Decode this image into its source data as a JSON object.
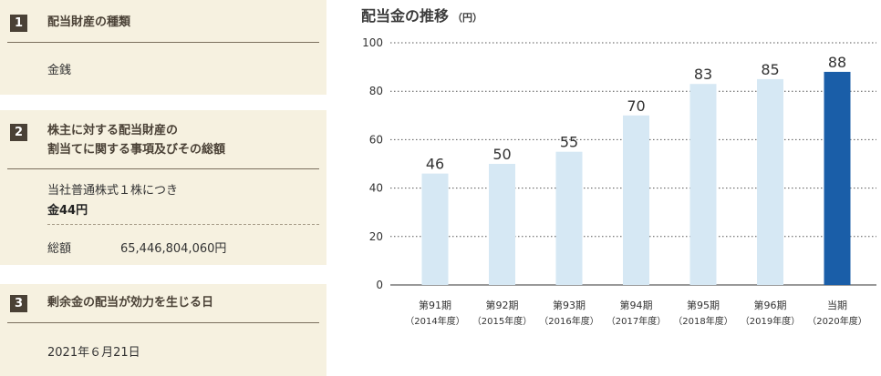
{
  "panels": [
    {
      "number": "1",
      "title_lines": [
        "配当財産の種類"
      ],
      "content": {
        "text": "金銭"
      }
    },
    {
      "number": "2",
      "title_lines": [
        "株主に対する配当財産の",
        "割当てに関する事項及びその総額"
      ],
      "content": {
        "line1": "当社普通株式１株につき",
        "line2": "金44円",
        "total_label": "総額",
        "total_value": "65,446,804,060円"
      }
    },
    {
      "number": "3",
      "title_lines": [
        "剰余金の配当が効力を生じる日"
      ],
      "content": {
        "text": "2021年６月21日"
      }
    }
  ],
  "colors": {
    "panel_bg": "#f6f1e0",
    "bar_light": "#d6e8f4",
    "bar_highlight": "#1a5ea8"
  },
  "chart_data": {
    "type": "bar",
    "title": "配当金の推移",
    "unit": "（円）",
    "categories": [
      [
        "第91期",
        "（2014年度）"
      ],
      [
        "第92期",
        "（2015年度）"
      ],
      [
        "第93期",
        "（2016年度）"
      ],
      [
        "第94期",
        "（2017年度）"
      ],
      [
        "第95期",
        "（2018年度）"
      ],
      [
        "第96期",
        "（2019年度）"
      ],
      [
        "当期",
        "（2020年度）"
      ]
    ],
    "values": [
      46,
      50,
      55,
      70,
      83,
      85,
      88
    ],
    "highlight_index": 6,
    "ylim": [
      0,
      100
    ],
    "yticks": [
      0,
      20,
      40,
      60,
      80,
      100
    ],
    "grid": true,
    "grid_style": "dotted"
  }
}
